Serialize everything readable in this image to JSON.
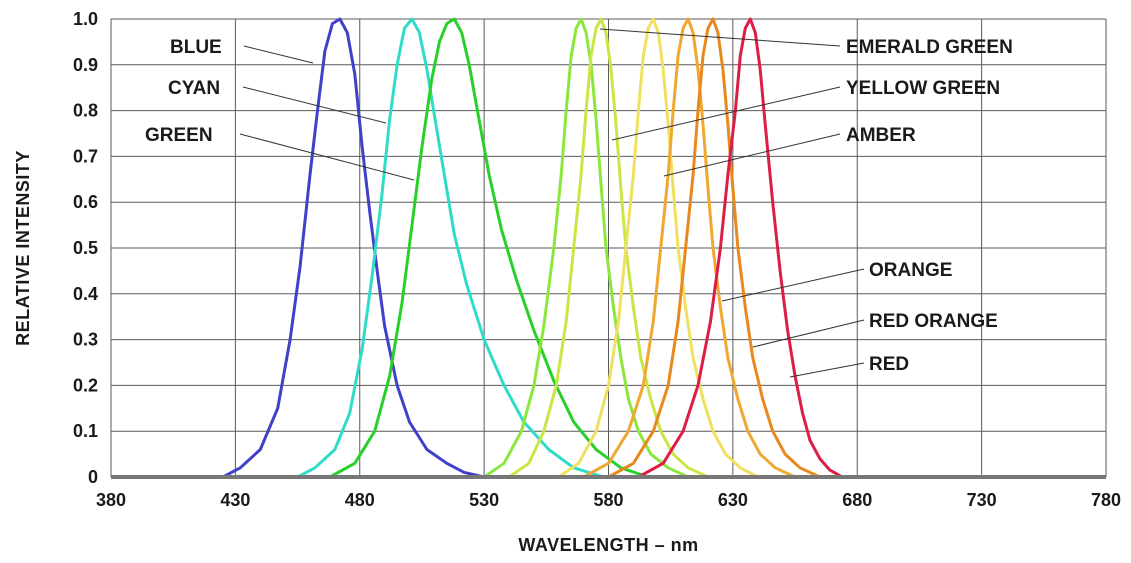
{
  "chart_data": {
    "type": "line",
    "xlabel": "WAVELENGTH – nm",
    "ylabel": "RELATIVE INTENSITY",
    "xlim": [
      380,
      780
    ],
    "ylim": [
      0,
      1.0
    ],
    "x_ticks": [
      "380",
      "430",
      "480",
      "530",
      "580",
      "630",
      "680",
      "730",
      "780"
    ],
    "y_ticks": [
      "0",
      "0.1",
      "0.2",
      "0.3",
      "0.4",
      "0.5",
      "0.6",
      "0.7",
      "0.8",
      "0.9",
      "1.0"
    ],
    "grid": true,
    "series": [
      {
        "name": "BLUE",
        "color": "#4040c8",
        "x": [
          425,
          432,
          440,
          447,
          452,
          456,
          460,
          463,
          466,
          469,
          472,
          475,
          478,
          481,
          484,
          487,
          490,
          495,
          500,
          507,
          515,
          522,
          530
        ],
        "y": [
          0.0,
          0.02,
          0.06,
          0.15,
          0.3,
          0.46,
          0.66,
          0.8,
          0.93,
          0.99,
          1.0,
          0.97,
          0.88,
          0.72,
          0.58,
          0.45,
          0.33,
          0.2,
          0.12,
          0.06,
          0.03,
          0.01,
          0.0
        ]
      },
      {
        "name": "CYAN",
        "color": "#30dcc8",
        "x": [
          455,
          462,
          470,
          476,
          481,
          485,
          489,
          492,
          495,
          498,
          501,
          504,
          507,
          510,
          514,
          518,
          523,
          530,
          538,
          546,
          556,
          566,
          578
        ],
        "y": [
          0.0,
          0.02,
          0.06,
          0.14,
          0.28,
          0.44,
          0.62,
          0.78,
          0.9,
          0.98,
          1.0,
          0.97,
          0.89,
          0.79,
          0.66,
          0.53,
          0.42,
          0.3,
          0.2,
          0.12,
          0.06,
          0.02,
          0.0
        ]
      },
      {
        "name": "GREEN",
        "color": "#2ad02a",
        "x": [
          468,
          478,
          486,
          492,
          497,
          501,
          505,
          509,
          512,
          515,
          518,
          521,
          524,
          528,
          532,
          537,
          543,
          550,
          558,
          566,
          575,
          585,
          596
        ],
        "y": [
          0.0,
          0.03,
          0.1,
          0.22,
          0.38,
          0.55,
          0.72,
          0.87,
          0.95,
          0.99,
          1.0,
          0.97,
          0.9,
          0.78,
          0.66,
          0.54,
          0.43,
          0.32,
          0.21,
          0.12,
          0.06,
          0.02,
          0.0
        ]
      },
      {
        "name": "EMERALD GREEN",
        "color": "#8ce63c",
        "x": [
          530,
          538,
          545,
          550,
          554,
          558,
          561,
          563,
          565,
          567,
          569,
          571,
          573,
          575,
          577,
          579,
          582,
          585,
          588,
          592,
          597,
          604,
          612
        ],
        "y": [
          0.0,
          0.03,
          0.1,
          0.2,
          0.33,
          0.5,
          0.66,
          0.8,
          0.92,
          0.98,
          1.0,
          0.97,
          0.9,
          0.78,
          0.64,
          0.5,
          0.37,
          0.26,
          0.17,
          0.1,
          0.05,
          0.02,
          0.0
        ]
      },
      {
        "name": "YELLOW GREEN",
        "color": "#c8e646",
        "x": [
          540,
          548,
          554,
          559,
          563,
          566,
          569,
          571,
          573,
          575,
          577,
          579,
          581,
          583,
          585,
          587,
          590,
          593,
          597,
          601,
          606,
          612,
          620
        ],
        "y": [
          0.0,
          0.03,
          0.1,
          0.2,
          0.34,
          0.5,
          0.66,
          0.8,
          0.92,
          0.98,
          1.0,
          0.97,
          0.89,
          0.77,
          0.63,
          0.5,
          0.37,
          0.26,
          0.17,
          0.1,
          0.05,
          0.02,
          0.0
        ]
      },
      {
        "name": "AMBER",
        "color": "#f0e060",
        "x": [
          560,
          568,
          575,
          580,
          584,
          587,
          590,
          592,
          594,
          596,
          598,
          600,
          602,
          604,
          606,
          608,
          611,
          614,
          618,
          622,
          627,
          633,
          640
        ],
        "y": [
          0.0,
          0.03,
          0.1,
          0.2,
          0.34,
          0.5,
          0.66,
          0.8,
          0.92,
          0.98,
          1.0,
          0.97,
          0.89,
          0.77,
          0.63,
          0.5,
          0.37,
          0.26,
          0.17,
          0.1,
          0.05,
          0.02,
          0.0
        ]
      },
      {
        "name": "ORANGE",
        "color": "#f0a830",
        "x": [
          570,
          580,
          588,
          594,
          598,
          601,
          604,
          606,
          608,
          610,
          612,
          614,
          616,
          618,
          620,
          622,
          625,
          628,
          632,
          636,
          641,
          647,
          655
        ],
        "y": [
          0.0,
          0.03,
          0.1,
          0.2,
          0.34,
          0.5,
          0.66,
          0.8,
          0.92,
          0.98,
          1.0,
          0.97,
          0.89,
          0.77,
          0.63,
          0.5,
          0.37,
          0.26,
          0.17,
          0.1,
          0.05,
          0.02,
          0.0
        ]
      },
      {
        "name": "RED ORANGE",
        "color": "#e8881e",
        "x": [
          580,
          590,
          598,
          604,
          608,
          611,
          614,
          616,
          618,
          620,
          622,
          624,
          626,
          628,
          630,
          632,
          635,
          638,
          642,
          646,
          651,
          657,
          665
        ],
        "y": [
          0.0,
          0.03,
          0.1,
          0.2,
          0.34,
          0.5,
          0.66,
          0.8,
          0.92,
          0.98,
          1.0,
          0.97,
          0.89,
          0.77,
          0.63,
          0.5,
          0.37,
          0.26,
          0.17,
          0.1,
          0.05,
          0.02,
          0.0
        ]
      },
      {
        "name": "RED",
        "color": "#dc1e46",
        "x": [
          592,
          602,
          610,
          616,
          621,
          625,
          628,
          631,
          633,
          635,
          637,
          639,
          641,
          643,
          646,
          649,
          652,
          655,
          658,
          661,
          665,
          669,
          674
        ],
        "y": [
          0.0,
          0.03,
          0.1,
          0.2,
          0.34,
          0.5,
          0.66,
          0.8,
          0.92,
          0.98,
          1.0,
          0.97,
          0.89,
          0.77,
          0.6,
          0.45,
          0.32,
          0.22,
          0.14,
          0.08,
          0.04,
          0.015,
          0.0
        ]
      }
    ]
  }
}
